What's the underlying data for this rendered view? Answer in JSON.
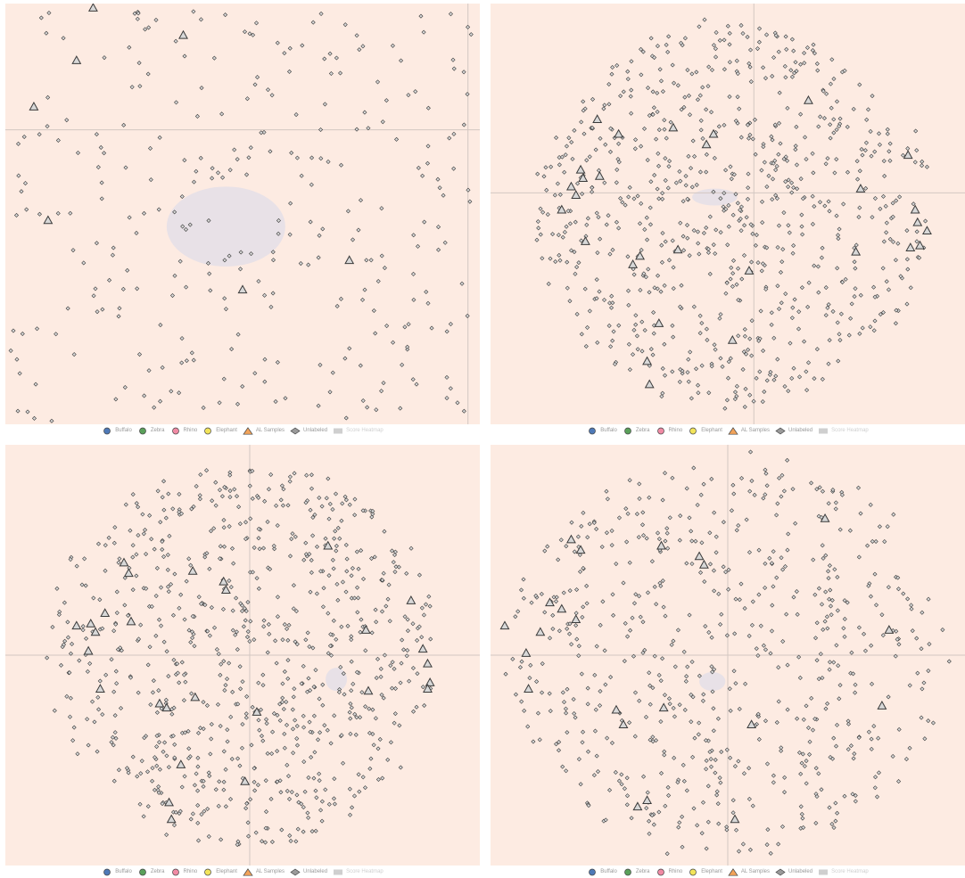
{
  "colors": {
    "plot_background": "#fdebe2",
    "axis_line": "#d3c7c2",
    "marker_fill": "#d8d8d8",
    "marker_stroke": "#3a3a3a",
    "heatmap_fill": "#e6e0e8",
    "buffalo": "#4e79b7",
    "zebra": "#5aa05a",
    "rhino": "#f08aa4",
    "elephant": "#f2e45a",
    "al_samples": "#f2a35a",
    "unlabeled": "#9a9a9a",
    "score_heatmap": "#cfcfcf"
  },
  "legend": [
    {
      "label": "Buffalo",
      "icon": "circle-icon",
      "color_key": "buffalo"
    },
    {
      "label": "Zebra",
      "icon": "circle-icon",
      "color_key": "zebra"
    },
    {
      "label": "Rhino",
      "icon": "circle-icon",
      "color_key": "rhino"
    },
    {
      "label": "Elephant",
      "icon": "circle-icon",
      "color_key": "elephant"
    },
    {
      "label": "AL Samples",
      "icon": "triangle-icon",
      "color_key": "al_samples"
    },
    {
      "label": "Unlabeled",
      "icon": "diamond-icon",
      "color_key": "unlabeled"
    },
    {
      "label": "Score Heatmap",
      "icon": "rect-icon",
      "color_key": "score_heatmap"
    }
  ],
  "chart_data": [
    {
      "type": "scatter",
      "panel": "top-left",
      "description_grid": "crosshair axes",
      "x_range": [
        -10,
        10
      ],
      "y_range": [
        -10,
        10
      ],
      "axis_x": 9.5,
      "axis_y": 4.0,
      "density": "sparse",
      "seed": 11,
      "unlabeled_count": 300,
      "unlabeled_cluster": null,
      "al_samples": [
        [
          -6.3,
          9.8
        ],
        [
          -2.5,
          8.5
        ],
        [
          -7.0,
          7.3
        ],
        [
          -8.8,
          5.1
        ],
        [
          -8.2,
          -0.3
        ],
        [
          0.0,
          -3.6
        ],
        [
          4.5,
          -2.2
        ]
      ],
      "heatmap": [
        -3.2,
        -2.5,
        1.8,
        1.3
      ]
    },
    {
      "type": "scatter",
      "panel": "top-right",
      "x_range": [
        -10,
        10
      ],
      "y_range": [
        -10,
        10
      ],
      "axis_x": 1.1,
      "axis_y": 1.0,
      "density": "dense",
      "seed": 23,
      "unlabeled_count": 750,
      "al_samples": [
        [
          -5.5,
          4.5
        ],
        [
          -4.6,
          3.8
        ],
        [
          -2.3,
          4.1
        ],
        [
          -0.9,
          3.3
        ],
        [
          -0.6,
          3.8
        ],
        [
          -6.2,
          2.1
        ],
        [
          -6.1,
          1.7
        ],
        [
          -5.4,
          1.8
        ],
        [
          -6.6,
          1.3
        ],
        [
          -6.4,
          0.9
        ],
        [
          -7.0,
          0.2
        ],
        [
          -6.0,
          -1.3
        ],
        [
          -3.7,
          -2.0
        ],
        [
          -4.0,
          -2.4
        ],
        [
          -2.1,
          -1.7
        ],
        [
          0.9,
          -2.7
        ],
        [
          3.4,
          5.4
        ],
        [
          7.6,
          2.8
        ],
        [
          5.6,
          1.2
        ],
        [
          7.9,
          0.2
        ],
        [
          8.0,
          -0.4
        ],
        [
          8.4,
          -0.8
        ],
        [
          7.7,
          -1.6
        ],
        [
          8.1,
          -1.5
        ],
        [
          5.4,
          -1.8
        ],
        [
          -2.9,
          -5.2
        ],
        [
          -3.4,
          -7.0
        ],
        [
          -3.3,
          -8.1
        ],
        [
          0.2,
          -6.0
        ]
      ],
      "heatmap": [
        -1.5,
        0.4,
        0.4,
        1.2
      ]
    },
    {
      "type": "scatter",
      "panel": "bottom-left",
      "x_range": [
        -10,
        10
      ],
      "y_range": [
        -10,
        10
      ],
      "axis_x": 0.3,
      "axis_y": 0.0,
      "density": "dense",
      "seed": 37,
      "unlabeled_count": 780,
      "al_samples": [
        [
          -5.0,
          4.4
        ],
        [
          -4.8,
          3.9
        ],
        [
          -2.1,
          4.0
        ],
        [
          -0.8,
          3.5
        ],
        [
          -0.7,
          3.1
        ],
        [
          -5.8,
          2.0
        ],
        [
          -6.4,
          1.5
        ],
        [
          -4.7,
          1.6
        ],
        [
          -7.0,
          1.4
        ],
        [
          -6.2,
          1.1
        ],
        [
          -6.5,
          0.2
        ],
        [
          -6.0,
          -1.6
        ],
        [
          -3.5,
          -2.3
        ],
        [
          -2.0,
          -2.0
        ],
        [
          -3.2,
          -2.5
        ],
        [
          0.6,
          -2.7
        ],
        [
          3.6,
          5.2
        ],
        [
          7.1,
          2.6
        ],
        [
          5.2,
          1.2
        ],
        [
          7.6,
          0.3
        ],
        [
          7.8,
          -0.4
        ],
        [
          7.9,
          -1.3
        ],
        [
          7.8,
          -1.6
        ],
        [
          5.3,
          -1.7
        ],
        [
          -2.6,
          -5.2
        ],
        [
          -3.1,
          -7.0
        ],
        [
          -3.0,
          -7.8
        ],
        [
          0.1,
          -6.0
        ]
      ],
      "heatmap": [
        3.5,
        -1.7,
        4.4,
        -0.6
      ]
    },
    {
      "type": "scatter",
      "panel": "bottom-right",
      "x_range": [
        -10,
        10
      ],
      "y_range": [
        -10,
        10
      ],
      "axis_x": 0.0,
      "axis_y": 0.0,
      "density": "medium",
      "seed": 53,
      "unlabeled_count": 620,
      "al_samples": [
        [
          -6.6,
          5.5
        ],
        [
          -6.2,
          5.0
        ],
        [
          -2.8,
          5.2
        ],
        [
          -1.2,
          4.7
        ],
        [
          -1.0,
          4.3
        ],
        [
          -7.5,
          2.5
        ],
        [
          -7.0,
          2.2
        ],
        [
          -6.4,
          1.7
        ],
        [
          -9.4,
          1.4
        ],
        [
          -7.9,
          1.1
        ],
        [
          -8.5,
          0.1
        ],
        [
          -8.4,
          -1.6
        ],
        [
          -4.7,
          -2.6
        ],
        [
          -2.7,
          -2.5
        ],
        [
          -4.4,
          -3.3
        ],
        [
          1.0,
          -3.3
        ],
        [
          4.1,
          6.5
        ],
        [
          6.8,
          1.2
        ],
        [
          6.5,
          -2.4
        ],
        [
          -3.4,
          -6.9
        ],
        [
          -3.8,
          -7.2
        ],
        [
          0.3,
          -7.8
        ]
      ],
      "heatmap": [
        -1.2,
        -1.7,
        -0.1,
        -0.8
      ]
    }
  ]
}
